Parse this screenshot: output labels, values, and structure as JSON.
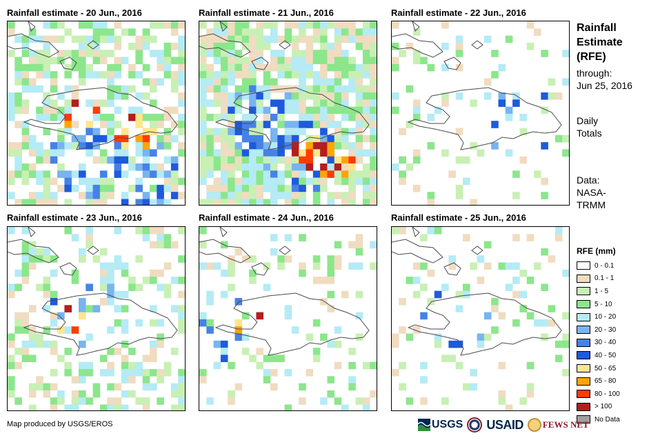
{
  "panels": [
    {
      "title": "Rainfall estimate - 20 Jun., 2016"
    },
    {
      "title": "Rainfall estimate - 21 Jun., 2016"
    },
    {
      "title": "Rainfall estimate - 22 Jun., 2016"
    },
    {
      "title": "Rainfall estimate - 23 Jun., 2016"
    },
    {
      "title": "Rainfall estimate - 24 Jun., 2016"
    },
    {
      "title": "Rainfall estimate - 25 Jun., 2016"
    }
  ],
  "side": {
    "title_line1": "Rainfall",
    "title_line2": "Estimate",
    "title_line3": "(RFE)",
    "through_label": "through:",
    "through_date": "Jun 25, 2016",
    "totals_line1": "Daily",
    "totals_line2": "Totals",
    "data_line1": "Data:",
    "data_line2": "NASA-",
    "data_line3": "TRMM"
  },
  "legend": {
    "title": "RFE (mm)",
    "items": [
      {
        "label": "0 - 0.1",
        "color": "#ffffff"
      },
      {
        "label": "0.1 - 1",
        "color": "#f0dcc0"
      },
      {
        "label": "1 - 5",
        "color": "#c8f0b4"
      },
      {
        "label": "5 - 10",
        "color": "#8ce68c"
      },
      {
        "label": "10 - 20",
        "color": "#b4ebf5"
      },
      {
        "label": "20 - 30",
        "color": "#78b4f0"
      },
      {
        "label": "30 - 40",
        "color": "#4682e6"
      },
      {
        "label": "40 - 50",
        "color": "#1e5adc"
      },
      {
        "label": "50 - 65",
        "color": "#ffe68c"
      },
      {
        "label": "65 - 80",
        "color": "#ffa500"
      },
      {
        "label": "80 - 100",
        "color": "#ff3c00"
      },
      {
        "label": "> 100",
        "color": "#b41e1e"
      },
      {
        "label": "No Data",
        "color": "#a0a0a0"
      }
    ]
  },
  "credit": "Map produced by USGS/EROS",
  "logos": {
    "usgs": "USGS",
    "usaid": "USAID",
    "fews": "FEWS NET"
  }
}
